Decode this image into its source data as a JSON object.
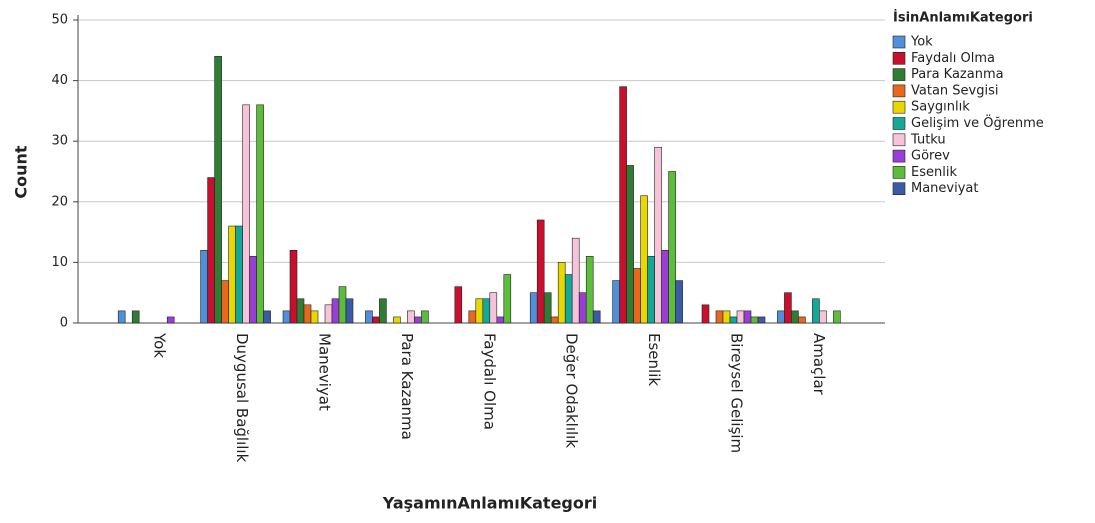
{
  "chart_data": {
    "type": "bar",
    "x_label": "YaşamınAnlamıKategori",
    "y_label": "Count",
    "legend_title": "İsinAnlamıKategori",
    "categories": [
      "Yok",
      "Duygusal Bağlılık",
      "Maneviyat",
      "Para Kazanma",
      "Faydalı Olma",
      "Değer Odaklılık",
      "Esenlik",
      "Bireysel Gelişim",
      "Amaçlar"
    ],
    "series": [
      {
        "name": "Yok",
        "color": "#4f8fdb",
        "values": [
          2,
          12,
          2,
          2,
          0,
          5,
          7,
          0,
          2
        ]
      },
      {
        "name": "Faydalı Olma",
        "color": "#c8102e",
        "values": [
          0,
          24,
          12,
          1,
          6,
          17,
          39,
          3,
          5
        ]
      },
      {
        "name": "Para Kazanma",
        "color": "#2e7d32",
        "values": [
          2,
          44,
          4,
          4,
          0,
          5,
          26,
          0,
          2
        ]
      },
      {
        "name": "Vatan Sevgisi",
        "color": "#e8681f",
        "values": [
          0,
          7,
          3,
          0,
          2,
          1,
          9,
          2,
          1
        ]
      },
      {
        "name": "Saygınlık",
        "color": "#e8d800",
        "values": [
          0,
          16,
          2,
          1,
          4,
          10,
          21,
          2,
          0
        ]
      },
      {
        "name": "Gelişim ve Öğrenme",
        "color": "#12a89a",
        "values": [
          0,
          16,
          0,
          0,
          4,
          8,
          11,
          1,
          4
        ]
      },
      {
        "name": "Tutku",
        "color": "#f7c3d9",
        "values": [
          0,
          36,
          3,
          2,
          5,
          14,
          29,
          2,
          2
        ]
      },
      {
        "name": "Görev",
        "color": "#9a3fd6",
        "values": [
          1,
          11,
          4,
          1,
          1,
          5,
          12,
          2,
          0
        ]
      },
      {
        "name": "Esenlik",
        "color": "#5cbd3a",
        "values": [
          0,
          36,
          6,
          2,
          8,
          11,
          25,
          1,
          2
        ]
      },
      {
        "name": "Maneviyat",
        "color": "#3b5aa8",
        "values": [
          0,
          2,
          4,
          0,
          0,
          2,
          7,
          1,
          0
        ]
      }
    ],
    "ylim": [
      0,
      50
    ],
    "yticks": [
      0,
      10,
      20,
      30,
      40,
      50
    ],
    "grid": true
  }
}
